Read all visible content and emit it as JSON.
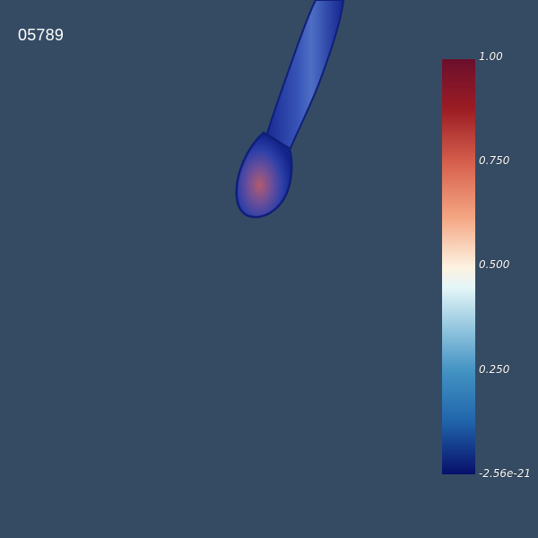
{
  "frame_number": "05789",
  "colorbar": {
    "ticks": [
      "1.00",
      "0.750",
      "0.500",
      "0.250",
      "-2.56e-21"
    ],
    "range": [
      -2.56e-21,
      1.0
    ],
    "colormap": [
      "#6b0f2c",
      "#9b1c23",
      "#d6604d",
      "#f4a582",
      "#fdf2e0",
      "#e4f6f8",
      "#92c5de",
      "#4393c3",
      "#2166ac",
      "#080f6b"
    ]
  },
  "volume": {
    "outer_color": "#1a2e9a",
    "core_color": "#b45a6e"
  }
}
